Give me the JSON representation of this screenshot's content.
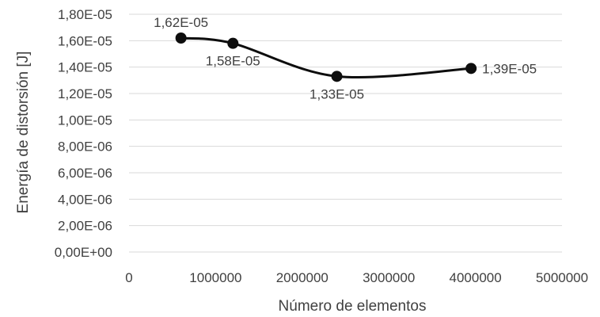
{
  "chart_data": {
    "type": "scatter",
    "title": "",
    "xlabel": "Número de elementos",
    "ylabel": "Energía de distorsión [J]",
    "xlim": [
      0,
      5000000
    ],
    "ylim": [
      0,
      1.8e-05
    ],
    "x_ticks": [
      0,
      1000000,
      2000000,
      3000000,
      4000000,
      5000000
    ],
    "x_tick_labels": [
      "0",
      "1000000",
      "2000000",
      "3000000",
      "4000000",
      "5000000"
    ],
    "y_ticks": [
      0,
      2e-06,
      4e-06,
      6e-06,
      8e-06,
      1e-05,
      1.2e-05,
      1.4e-05,
      1.6e-05,
      1.8e-05
    ],
    "y_tick_labels": [
      "0,00E+00",
      "2,00E-06",
      "4,00E-06",
      "6,00E-06",
      "8,00E-06",
      "1,00E-05",
      "1,20E-05",
      "1,40E-05",
      "1,60E-05",
      "1,80E-05"
    ],
    "grid": true,
    "line_style": "smoothed line with markers",
    "series_color": "#0d0d0d",
    "series": [
      {
        "x": [
          600000,
          1200000,
          2400000,
          3950000
        ],
        "y": [
          1.62e-05,
          1.58e-05,
          1.33e-05,
          1.39e-05
        ],
        "data_labels": [
          "1,62E-05",
          "1,58E-05",
          "1,33E-05",
          "1,39E-05"
        ],
        "label_positions": [
          "above",
          "below",
          "below",
          "right"
        ]
      }
    ]
  }
}
